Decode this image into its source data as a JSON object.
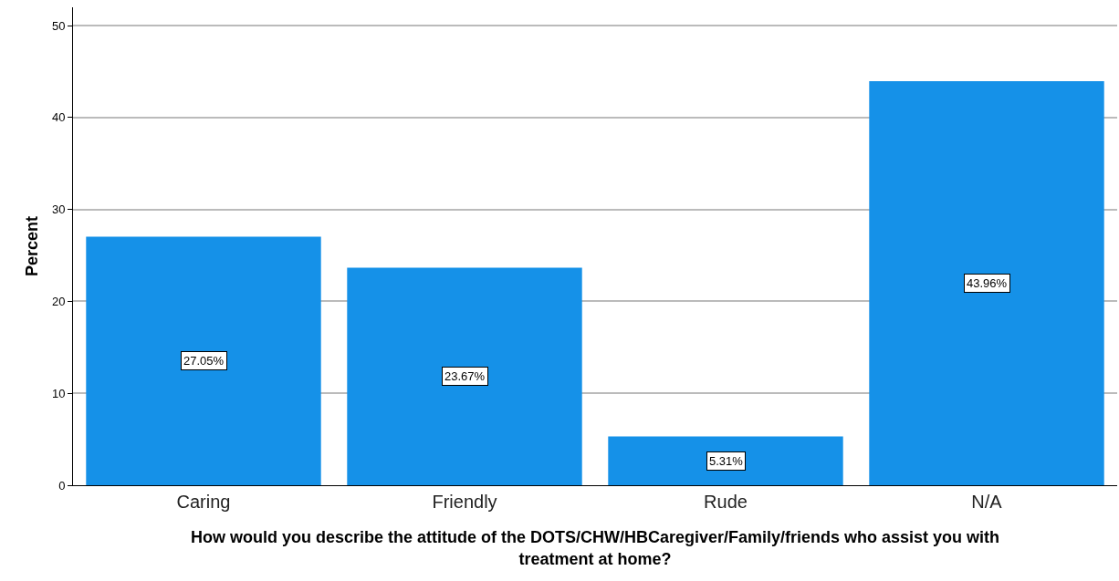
{
  "chart_data": {
    "type": "bar",
    "xlabel": "How would you describe the attitude of the DOTS/CHW/HBCaregiver/Family/friends who assist you with treatment at home?",
    "ylabel": "Percent",
    "categories": [
      "Caring",
      "Friendly",
      "Rude",
      "N/A"
    ],
    "values": [
      27.05,
      23.67,
      5.31,
      43.96
    ],
    "value_labels": [
      "27.05%",
      "23.67%",
      "5.31%",
      "43.96%"
    ],
    "color": "#1591e8",
    "ylim": [
      0,
      52
    ],
    "yticks": [
      0,
      10,
      20,
      30,
      40,
      50
    ],
    "grid": "y"
  }
}
